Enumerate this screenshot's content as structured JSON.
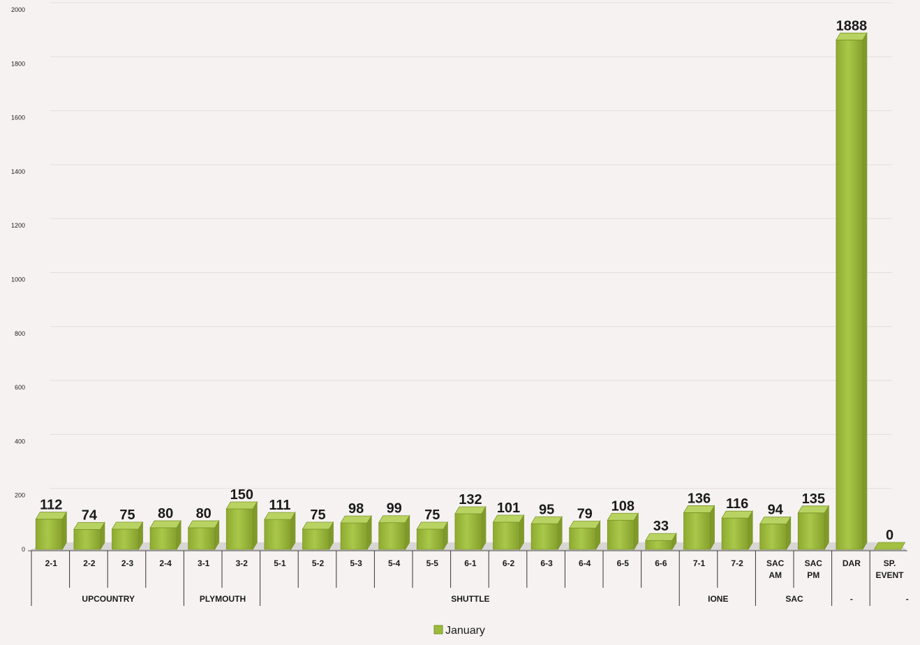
{
  "chart_data": {
    "type": "bar",
    "title": "",
    "xlabel": "",
    "ylabel": "",
    "ylim": [
      0,
      2000
    ],
    "y_ticks": [
      "0",
      "200",
      "400",
      "600",
      "800",
      "1000",
      "1200",
      "1400",
      "1600",
      "1800",
      "2000"
    ],
    "grid": true,
    "legend_position": "bottom-center",
    "categories": [
      {
        "label": [
          "2-1"
        ]
      },
      {
        "label": [
          "2-2"
        ]
      },
      {
        "label": [
          "2-3"
        ]
      },
      {
        "label": [
          "2-4"
        ]
      },
      {
        "label": [
          "3-1"
        ]
      },
      {
        "label": [
          "3-2"
        ]
      },
      {
        "label": [
          "5-1"
        ]
      },
      {
        "label": [
          "5-2"
        ]
      },
      {
        "label": [
          "5-3"
        ]
      },
      {
        "label": [
          "5-4"
        ]
      },
      {
        "label": [
          "5-5"
        ]
      },
      {
        "label": [
          "6-1"
        ]
      },
      {
        "label": [
          "6-2"
        ]
      },
      {
        "label": [
          "6-3"
        ]
      },
      {
        "label": [
          "6-4"
        ]
      },
      {
        "label": [
          "6-5"
        ]
      },
      {
        "label": [
          "6-6"
        ]
      },
      {
        "label": [
          "7-1"
        ]
      },
      {
        "label": [
          "7-2"
        ]
      },
      {
        "label": [
          "SAC",
          "AM"
        ]
      },
      {
        "label": [
          "SAC",
          "PM"
        ]
      },
      {
        "label": [
          "DAR"
        ]
      },
      {
        "label": [
          "SP.",
          "EVENT"
        ]
      }
    ],
    "groups": [
      {
        "label": "UPCOUNTRY",
        "count": 4
      },
      {
        "label": "PLYMOUTH",
        "count": 2
      },
      {
        "label": "SHUTTLE",
        "count": 11
      },
      {
        "label": "IONE",
        "count": 2
      },
      {
        "label": "SAC",
        "count": 2
      },
      {
        "label": "-",
        "count": 1
      },
      {
        "label": "-",
        "count": 1
      }
    ],
    "series": [
      {
        "name": "January",
        "color": "#9bbb3c",
        "values": [
          112,
          74,
          75,
          80,
          80,
          150,
          111,
          75,
          98,
          99,
          75,
          132,
          101,
          95,
          79,
          108,
          33,
          136,
          116,
          94,
          135,
          1888,
          0
        ]
      }
    ]
  }
}
